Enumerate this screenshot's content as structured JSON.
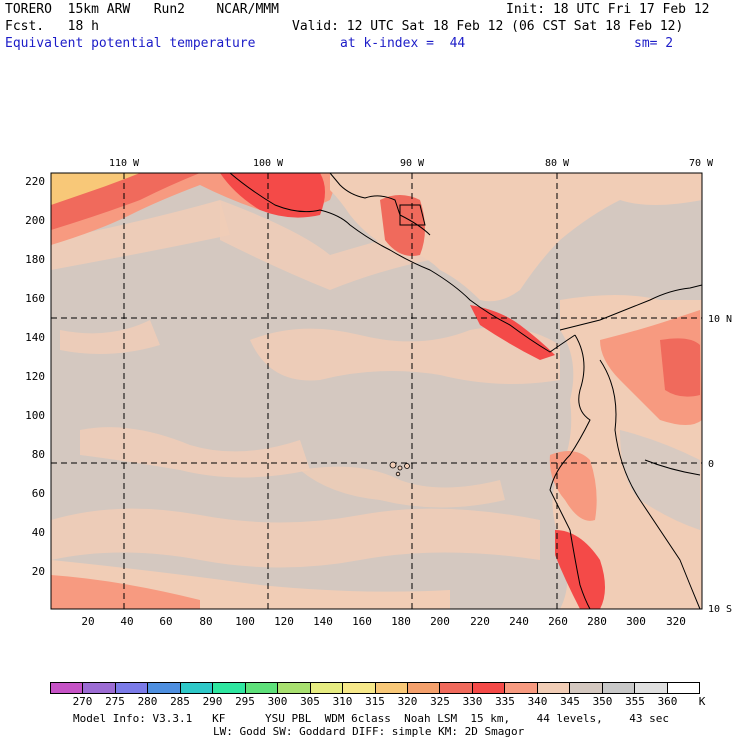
{
  "header": {
    "title": "TORERO  15km ARW   Run2    NCAR/MMM",
    "init": "Init: 18 UTC Fri 17 Feb 12",
    "forecast": "Fcst.   18 h",
    "valid": "Valid: 12 UTC Sat 18 Feb 12 (06 CST Sat 18 Feb 12)",
    "field": "Equivalent potential temperature",
    "level": "at k-index =  44",
    "smoothing": "sm= 2"
  },
  "map": {
    "longitude_labels": [
      "110 W",
      "100 W",
      "90 W",
      "80 W",
      "70 W"
    ],
    "latitude_labels": [
      "10 N",
      "0",
      "10 S"
    ],
    "y_grid_labels": [
      "220",
      "200",
      "180",
      "160",
      "140",
      "120",
      "100",
      "80",
      "60",
      "40",
      "20"
    ],
    "x_grid_labels": [
      "20",
      "40",
      "60",
      "80",
      "100",
      "120",
      "140",
      "160",
      "180",
      "200",
      "220",
      "240",
      "260",
      "280",
      "300",
      "320"
    ]
  },
  "colorbar": {
    "labels": [
      "270",
      "275",
      "280",
      "285",
      "290",
      "295",
      "300",
      "305",
      "310",
      "315",
      "320",
      "325",
      "330",
      "335",
      "340",
      "345",
      "350",
      "355",
      "360"
    ],
    "unit": "K",
    "colors": [
      "#c653c6",
      "#9c6cd3",
      "#7b7be8",
      "#4e8fe0",
      "#2ec8c8",
      "#2ee6a0",
      "#5ee07a",
      "#a8e070",
      "#e6ec82",
      "#f6e88a",
      "#f8c878",
      "#f4a06c",
      "#f06a5c",
      "#f44a48",
      "#f79a80",
      "#f1cdb6",
      "#d4c8c0",
      "#c8c8c8",
      "#e0e0e0",
      "#ffffff"
    ]
  },
  "footer": {
    "line1": "Model Info: V3.3.1   KF      YSU PBL  WDM 6class  Noah LSM  15 km,    44 levels,    43 sec",
    "line2": "LW: Godd SW: Goddard DIFF: simple KM: 2D Smagor"
  }
}
